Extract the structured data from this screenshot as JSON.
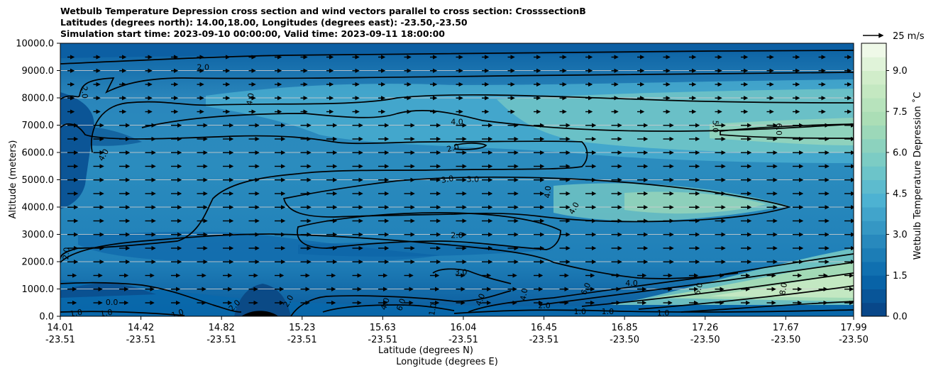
{
  "chart_data": {
    "type": "heatmap",
    "title_lines": [
      "Wetbulb Temperature Depression cross section and wind vectors parallel to cross section: CrosssectionB",
      "Latitudes (degrees north): 14.00,18.00, Longitudes (degrees east): -23.50,-23.50",
      "Simulation start time: 2023-09-10 00:00:00, Valid time: 2023-09-11 18:00:00"
    ],
    "ylabel": "Altitude (meters)",
    "xlabel_lat": "Latitude (degrees N)",
    "xlabel_lon": "Longitude (degrees E)",
    "ylim": [
      0,
      10000
    ],
    "y_ticks": [
      "0.0",
      "1000.0",
      "2000.0",
      "3000.0",
      "4000.0",
      "5000.0",
      "6000.0",
      "7000.0",
      "8000.0",
      "9000.0",
      "10000.0"
    ],
    "x_ticks": [
      {
        "lat": "14.01",
        "lon": "-23.51"
      },
      {
        "lat": "14.42",
        "lon": "-23.51"
      },
      {
        "lat": "14.82",
        "lon": "-23.51"
      },
      {
        "lat": "15.23",
        "lon": "-23.51"
      },
      {
        "lat": "15.63",
        "lon": "-23.51"
      },
      {
        "lat": "16.04",
        "lon": "-23.51"
      },
      {
        "lat": "16.45",
        "lon": "-23.51"
      },
      {
        "lat": "16.85",
        "lon": "-23.50"
      },
      {
        "lat": "17.26",
        "lon": "-23.50"
      },
      {
        "lat": "17.67",
        "lon": "-23.50"
      },
      {
        "lat": "17.99",
        "lon": "-23.50"
      }
    ],
    "colorbar": {
      "label": "Wetbulb Temperature Depression ˚C",
      "min": 0.0,
      "max": 10.0,
      "levels": [
        0.0,
        0.5,
        1.0,
        1.5,
        2.0,
        2.5,
        3.0,
        3.5,
        4.0,
        4.5,
        5.0,
        5.5,
        6.0,
        6.5,
        7.0,
        7.5,
        8.0,
        8.5,
        9.0,
        9.5,
        10.0
      ],
      "tick_labels": [
        "0.0",
        "1.5",
        "3.0",
        "4.5",
        "6.0",
        "7.5",
        "9.0"
      ],
      "colors": [
        "#084081",
        "#0868ac",
        "#2b8cbe",
        "#4eb3d3",
        "#7bccc4",
        "#a8ddb5",
        "#ccebc5",
        "#f7fcf0"
      ]
    },
    "quiver_key": {
      "label": "25 m/s"
    },
    "grid": "horizontal",
    "contour_labels": [
      {
        "text": "2.0",
        "x": 0.18,
        "y": 9100,
        "rot": 0
      },
      {
        "text": "2.0",
        "x": 0.03,
        "y": 8200,
        "rot": 88
      },
      {
        "text": "4.0",
        "x": 0.24,
        "y": 7950,
        "rot": -80
      },
      {
        "text": "4.0",
        "x": 0.5,
        "y": 7100,
        "rot": 0
      },
      {
        "text": "5.0",
        "x": 0.825,
        "y": 6950,
        "rot": 90
      },
      {
        "text": "6.0",
        "x": 0.905,
        "y": 6850,
        "rot": 90
      },
      {
        "text": "4.0",
        "x": 0.055,
        "y": 5900,
        "rot": -60
      },
      {
        "text": "2.0",
        "x": 0.495,
        "y": 6150,
        "rot": -15
      },
      {
        "text": "3.0",
        "x": 0.488,
        "y": 5000,
        "rot": -10
      },
      {
        "text": "3.0",
        "x": 0.52,
        "y": 5000,
        "rot": 0
      },
      {
        "text": "4.0",
        "x": 0.615,
        "y": 4550,
        "rot": -85
      },
      {
        "text": "4.0",
        "x": 0.648,
        "y": 3950,
        "rot": -60
      },
      {
        "text": "2.0",
        "x": 0.5,
        "y": 2950,
        "rot": 0
      },
      {
        "text": "2.0",
        "x": 0.008,
        "y": 2300,
        "rot": -85
      },
      {
        "text": "3.0",
        "x": 0.505,
        "y": 1600,
        "rot": 0
      },
      {
        "text": "4.0",
        "x": 0.72,
        "y": 1200,
        "rot": 0
      },
      {
        "text": "6.0",
        "x": 0.805,
        "y": 1000,
        "rot": -75
      },
      {
        "text": "8.0",
        "x": 0.912,
        "y": 1000,
        "rot": -80
      },
      {
        "text": "0.0",
        "x": 0.065,
        "y": 500,
        "rot": 0
      },
      {
        "text": "1.0",
        "x": 0.02,
        "y": 100,
        "rot": -10
      },
      {
        "text": "1.0",
        "x": 0.058,
        "y": 100,
        "rot": -10
      },
      {
        "text": "1.0",
        "x": 0.148,
        "y": 80,
        "rot": -20
      },
      {
        "text": "2.0",
        "x": 0.22,
        "y": 380,
        "rot": -45
      },
      {
        "text": "2.0",
        "x": 0.288,
        "y": 550,
        "rot": -60
      },
      {
        "text": "4.0",
        "x": 0.41,
        "y": 450,
        "rot": -70
      },
      {
        "text": "6.0",
        "x": 0.43,
        "y": 420,
        "rot": -70
      },
      {
        "text": "1.0",
        "x": 0.47,
        "y": 250,
        "rot": -80
      },
      {
        "text": "4.0",
        "x": 0.53,
        "y": 600,
        "rot": -70
      },
      {
        "text": "4.0",
        "x": 0.585,
        "y": 800,
        "rot": -80
      },
      {
        "text": "2.0",
        "x": 0.61,
        "y": 380,
        "rot": 0
      },
      {
        "text": "6.0",
        "x": 0.663,
        "y": 1000,
        "rot": -65
      },
      {
        "text": "1.0",
        "x": 0.655,
        "y": 150,
        "rot": 0
      },
      {
        "text": "1.0",
        "x": 0.69,
        "y": 150,
        "rot": 0
      },
      {
        "text": "1.0",
        "x": 0.76,
        "y": 110,
        "rot": 0
      }
    ]
  }
}
